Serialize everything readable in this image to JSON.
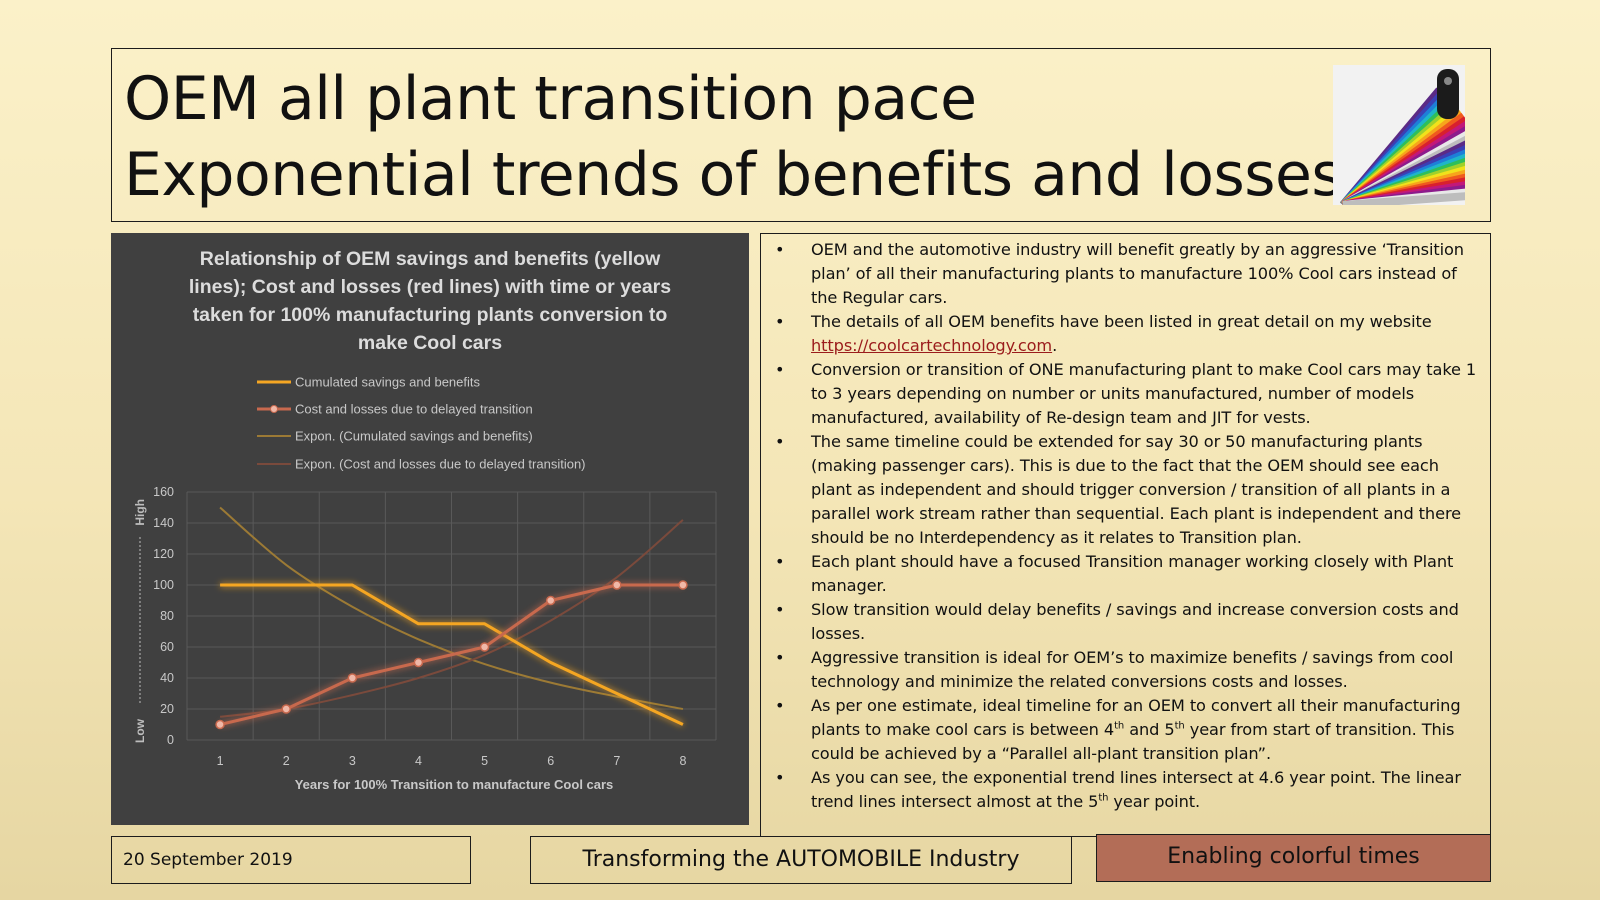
{
  "slide": {
    "title_line_1": "OEM all plant transition pace",
    "title_line_2": "Exponential trends of benefits and losses"
  },
  "bullets": [
    {
      "text": "OEM and the automotive industry will benefit greatly by an aggressive ‘Transition plan’ of all their manufacturing plants to manufacture 100% Cool cars instead of the Regular cars."
    },
    {
      "text": "The details of all OEM benefits have been listed in great detail on my website ",
      "link": "https://coolcartechnology.com",
      "after": "."
    },
    {
      "text": "Conversion or transition of ONE manufacturing plant to make Cool cars may take 1 to 3 years depending on number or units manufactured, number of models manufactured, availability of Re-design team and JIT for vests."
    },
    {
      "text": "The same timeline could be extended for say 30 or 50 manufacturing plants (making passenger cars). This is due to the fact that the OEM should see each plant as independent and should trigger conversion / transition of all plants in a parallel work stream rather than sequential. Each plant is independent and there should be no Interdependency as it relates to Transition plan."
    },
    {
      "text": "Each plant should have a focused Transition manager working closely with Plant manager."
    },
    {
      "text": "Slow transition would delay benefits / savings and increase conversion costs and losses."
    },
    {
      "text": "Aggressive transition is ideal for OEM’s to maximize benefits / savings from cool technology and minimize the related conversions costs and losses."
    },
    {
      "text": "As per one estimate, ideal timeline for an OEM to convert all their manufacturing plants to make cool cars is between 4",
      "sup1": "th",
      "mid": " and 5",
      "sup2": "th",
      "after": " year from start of transition. This could be achieved by a “Parallel all-plant transition plan”."
    },
    {
      "text": "As you can see, the exponential trend lines intersect at 4.6 year point. The linear trend lines intersect almost at the 5",
      "sup1": "th",
      "after": " year point."
    }
  ],
  "bullet_marker": "•",
  "footer": {
    "date": "20 September 2019",
    "tagline": "Transforming the AUTOMOBILE Industry",
    "slogan": "Enabling colorful times"
  },
  "colors": {
    "savings": "#f5a623",
    "losses": "#c8694e",
    "exp_savings": "#9c7a35",
    "exp_losses": "#7a4a3c",
    "panel_bg": "#404040",
    "slogan_bg": "#b36d57"
  },
  "chart_data": {
    "type": "line",
    "title": "Relationship of OEM savings and benefits (yellow lines); Cost and losses (red lines) with time or years taken for 100% manufacturing plants conversion to make Cool cars",
    "title_lines": [
      "Relationship of OEM savings and benefits (yellow",
      "lines); Cost and losses (red lines) with time or years",
      "taken for 100% manufacturing plants conversion to",
      "make Cool cars"
    ],
    "xlabel": "Years for 100% Transition to manufacture Cool cars",
    "ylabel": "Low -------------------------- High",
    "ylabel_low": "Low",
    "ylabel_high": "High",
    "x": [
      1,
      2,
      3,
      4,
      5,
      6,
      7,
      8
    ],
    "ylim": [
      0,
      160
    ],
    "yticks": [
      0,
      20,
      40,
      60,
      80,
      100,
      120,
      140,
      160
    ],
    "grid": true,
    "legend_position": "top",
    "series": [
      {
        "name": "Cumulated savings and benefits",
        "values": [
          100,
          100,
          100,
          75,
          75,
          50,
          30,
          10
        ],
        "markers": false
      },
      {
        "name": "Cost and losses due to delayed transition",
        "values": [
          10,
          20,
          40,
          50,
          60,
          90,
          100,
          100
        ],
        "markers": true
      },
      {
        "name": "Expon. (Cumulated savings and benefits)",
        "values": [
          150,
          113,
          86,
          65,
          49,
          37,
          28,
          20
        ],
        "trend": true
      },
      {
        "name": "Expon. (Cost and losses due to delayed transition)",
        "values": [
          15,
          20,
          29,
          40,
          55,
          77,
          105,
          142
        ],
        "trend": true
      }
    ]
  }
}
